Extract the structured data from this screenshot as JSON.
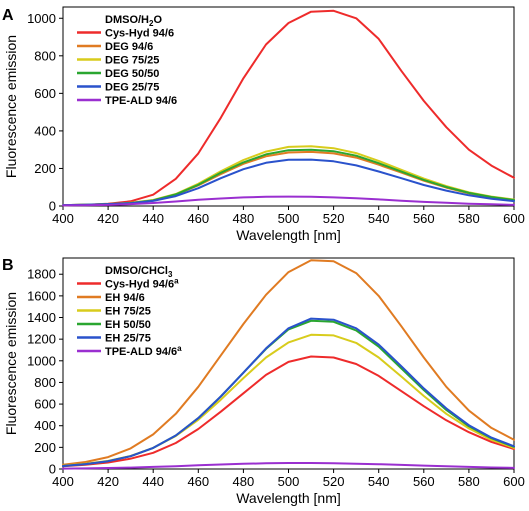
{
  "chart_data": [
    {
      "panel_label": "A",
      "type": "line",
      "xlabel": "Wavelength [nm]",
      "ylabel": "Fluorescence emission",
      "xlim": [
        400,
        600
      ],
      "ylim": [
        0,
        1060
      ],
      "x_ticks": [
        400,
        420,
        440,
        460,
        480,
        500,
        520,
        540,
        560,
        580,
        600
      ],
      "y_ticks": [
        0,
        200,
        400,
        600,
        800,
        1000
      ],
      "legend_title": {
        "main": "DMSO/H",
        "sub": "2",
        "tail": "O"
      },
      "legend_position": "top-left",
      "x": [
        400,
        410,
        420,
        430,
        440,
        450,
        460,
        470,
        480,
        490,
        500,
        510,
        520,
        530,
        540,
        550,
        560,
        570,
        580,
        590,
        600
      ],
      "series": [
        {
          "name": "Cys-Hyd 94/6",
          "color": "#ee2b2b",
          "values": [
            4,
            7,
            12,
            25,
            60,
            145,
            280,
            470,
            680,
            860,
            975,
            1035,
            1040,
            1000,
            890,
            720,
            560,
            420,
            300,
            215,
            150
          ]
        },
        {
          "name": "DEG 94/6",
          "color": "#e07b22",
          "values": [
            5,
            7,
            10,
            16,
            30,
            60,
            110,
            170,
            225,
            265,
            285,
            288,
            280,
            258,
            220,
            178,
            135,
            98,
            67,
            46,
            30
          ]
        },
        {
          "name": "DEG 75/25",
          "color": "#d8cc1c",
          "values": [
            5,
            7,
            10,
            17,
            32,
            64,
            118,
            185,
            245,
            290,
            315,
            318,
            308,
            282,
            240,
            193,
            146,
            106,
            73,
            50,
            34
          ]
        },
        {
          "name": "DEG 50/50",
          "color": "#2aa630",
          "values": [
            5,
            7,
            10,
            16,
            30,
            62,
            113,
            177,
            232,
            275,
            297,
            300,
            292,
            268,
            228,
            183,
            139,
            101,
            70,
            48,
            32
          ]
        },
        {
          "name": "DEG 25/75",
          "color": "#2a52cc",
          "values": [
            5,
            7,
            10,
            15,
            27,
            53,
            95,
            148,
            196,
            230,
            246,
            247,
            238,
            216,
            184,
            148,
            112,
            82,
            57,
            39,
            26
          ]
        },
        {
          "name": "TPE-ALD 94/6",
          "color": "#9a2fd0",
          "values": [
            3,
            4,
            6,
            10,
            16,
            24,
            33,
            40,
            46,
            49,
            50,
            49,
            46,
            41,
            35,
            28,
            22,
            17,
            12,
            9,
            6
          ]
        }
      ]
    },
    {
      "panel_label": "B",
      "type": "line",
      "xlabel": "Wavelength [nm]",
      "ylabel": "Fluorescence emission",
      "xlim": [
        400,
        600
      ],
      "ylim": [
        0,
        1950
      ],
      "x_ticks": [
        400,
        420,
        440,
        460,
        480,
        500,
        520,
        540,
        560,
        580,
        600
      ],
      "y_ticks": [
        0,
        200,
        400,
        600,
        800,
        1000,
        1200,
        1400,
        1600,
        1800
      ],
      "legend_title": {
        "main": "DMSO/CHCl",
        "sub": "3",
        "tail": ""
      },
      "legend_position": "top-left",
      "x": [
        400,
        410,
        420,
        430,
        440,
        450,
        460,
        470,
        480,
        490,
        500,
        510,
        520,
        530,
        540,
        550,
        560,
        570,
        580,
        590,
        600
      ],
      "series": [
        {
          "name": "Cys-Hyd 94/6",
          "name_sup": "a",
          "color": "#ee2b2b",
          "values": [
            25,
            40,
            60,
            95,
            150,
            240,
            370,
            530,
            700,
            870,
            990,
            1040,
            1030,
            970,
            860,
            720,
            580,
            450,
            340,
            250,
            185
          ]
        },
        {
          "name": "EH 94/6",
          "name_sup": "",
          "color": "#e07b22",
          "values": [
            40,
            65,
            110,
            190,
            320,
            510,
            760,
            1050,
            1340,
            1610,
            1820,
            1930,
            1920,
            1810,
            1600,
            1320,
            1030,
            760,
            540,
            380,
            270
          ]
        },
        {
          "name": "EH 75/25",
          "name_sup": "",
          "color": "#d8cc1c",
          "values": [
            30,
            48,
            75,
            120,
            195,
            305,
            455,
            640,
            840,
            1030,
            1170,
            1240,
            1235,
            1165,
            1030,
            855,
            675,
            510,
            375,
            270,
            195
          ]
        },
        {
          "name": "EH 50/50",
          "name_sup": "",
          "color": "#2aa630",
          "values": [
            28,
            45,
            72,
            118,
            195,
            310,
            470,
            670,
            890,
            1110,
            1290,
            1370,
            1360,
            1280,
            1130,
            930,
            730,
            545,
            395,
            285,
            205
          ]
        },
        {
          "name": "EH 25/75",
          "name_sup": "",
          "color": "#2a52cc",
          "values": [
            28,
            45,
            72,
            118,
            195,
            310,
            470,
            670,
            890,
            1115,
            1300,
            1390,
            1380,
            1300,
            1150,
            950,
            745,
            560,
            405,
            290,
            210
          ]
        },
        {
          "name": "TPE-ALD 94/6",
          "name_sup": "a",
          "color": "#9a2fd0",
          "values": [
            4,
            6,
            9,
            13,
            19,
            26,
            34,
            42,
            48,
            53,
            55,
            55,
            53,
            49,
            44,
            38,
            31,
            25,
            19,
            14,
            10
          ]
        }
      ]
    }
  ]
}
